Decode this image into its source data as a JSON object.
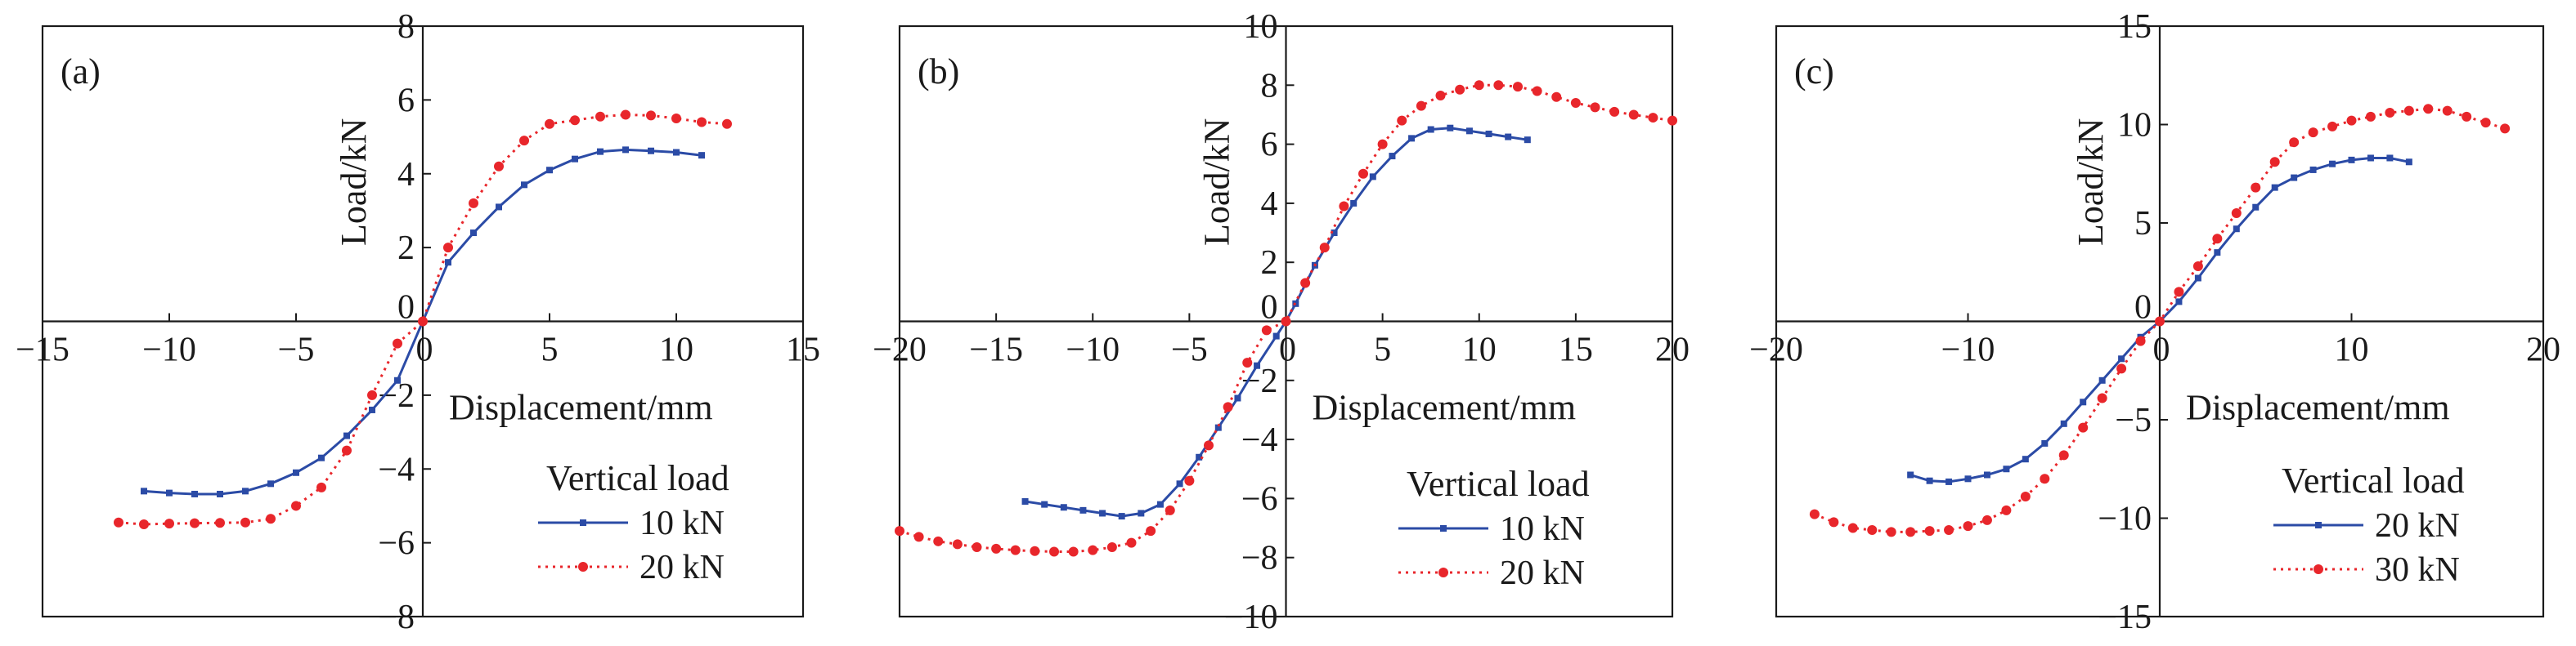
{
  "chart_data": [
    {
      "type": "line",
      "panel_label": "(a)",
      "xlabel": "Displacement/mm",
      "ylabel": "Load/kN",
      "xlim": [
        -15,
        15
      ],
      "ylim": [
        -8,
        8
      ],
      "xticks": [
        -15,
        -10,
        -5,
        0,
        5,
        10,
        15
      ],
      "yticks": [
        -8,
        -6,
        -4,
        -2,
        0,
        2,
        4,
        6,
        8
      ],
      "xtick_labels": [
        "−15",
        "−10",
        "−5",
        "0",
        "5",
        "10",
        "15"
      ],
      "ytick_labels": [
        "−8",
        "−6",
        "−4",
        "−2",
        "0",
        "2",
        "4",
        "6",
        "8"
      ],
      "grid": false,
      "legend_title": "Vertical load",
      "legend_position": "bottom-right",
      "series": [
        {
          "name": "10 kN",
          "color": "#2b4ba6",
          "style": "solid",
          "marker": "square",
          "x": [
            -11,
            -10,
            -9,
            -8,
            -7,
            -6,
            -5,
            -4,
            -3,
            -2,
            -1,
            0,
            1,
            2,
            3,
            4,
            5,
            6,
            7,
            8,
            9,
            10,
            11
          ],
          "y": [
            -4.6,
            -4.65,
            -4.68,
            -4.68,
            -4.6,
            -4.4,
            -4.1,
            -3.7,
            -3.1,
            -2.4,
            -1.6,
            0,
            1.6,
            2.4,
            3.1,
            3.7,
            4.1,
            4.4,
            4.6,
            4.65,
            4.62,
            4.58,
            4.5
          ]
        },
        {
          "name": "20 kN",
          "color": "#e8262b",
          "style": "dotted",
          "marker": "circle",
          "x": [
            -12,
            -11,
            -10,
            -9,
            -8,
            -7,
            -6,
            -5,
            -4,
            -3,
            -2,
            -1,
            0,
            1,
            2,
            3,
            4,
            5,
            6,
            7,
            8,
            9,
            10,
            11,
            12
          ],
          "y": [
            -5.45,
            -5.5,
            -5.48,
            -5.47,
            -5.46,
            -5.45,
            -5.35,
            -5.0,
            -4.5,
            -3.5,
            -2.0,
            -0.6,
            0,
            2.0,
            3.2,
            4.2,
            4.9,
            5.35,
            5.45,
            5.55,
            5.6,
            5.58,
            5.5,
            5.4,
            5.35
          ]
        }
      ]
    },
    {
      "type": "line",
      "panel_label": "(b)",
      "xlabel": "Displacement/mm",
      "ylabel": "Load/kN",
      "xlim": [
        -20,
        20
      ],
      "ylim": [
        -10,
        10
      ],
      "xticks": [
        -20,
        -15,
        -10,
        -5,
        0,
        5,
        10,
        15,
        20
      ],
      "yticks": [
        -10,
        -8,
        -6,
        -4,
        -2,
        0,
        2,
        4,
        6,
        8,
        10
      ],
      "xtick_labels": [
        "−20",
        "−15",
        "−10",
        "−5",
        "0",
        "5",
        "10",
        "15",
        "20"
      ],
      "ytick_labels": [
        "−10",
        "−8",
        "−6",
        "−4",
        "−2",
        "0",
        "2",
        "4",
        "6",
        "8",
        "10"
      ],
      "grid": false,
      "legend_title": "Vertical load",
      "legend_position": "bottom-right",
      "series": [
        {
          "name": "10 kN",
          "color": "#2b4ba6",
          "style": "solid",
          "marker": "square",
          "x": [
            -13.5,
            -12.5,
            -11.5,
            -10.5,
            -9.5,
            -8.5,
            -7.5,
            -6.5,
            -5.5,
            -4.5,
            -3.5,
            -2.5,
            -1.5,
            -0.5,
            0,
            0.5,
            1.5,
            2.5,
            3.5,
            4.5,
            5.5,
            6.5,
            7.5,
            8.5,
            9.5,
            10.5,
            11.5,
            12.5
          ],
          "y": [
            -6.1,
            -6.2,
            -6.3,
            -6.4,
            -6.5,
            -6.6,
            -6.5,
            -6.2,
            -5.5,
            -4.6,
            -3.6,
            -2.6,
            -1.5,
            -0.5,
            0,
            0.6,
            1.9,
            3.0,
            4.0,
            4.9,
            5.6,
            6.2,
            6.5,
            6.55,
            6.45,
            6.35,
            6.25,
            6.15
          ]
        },
        {
          "name": "20 kN",
          "color": "#e8262b",
          "style": "dotted",
          "marker": "circle",
          "x": [
            -20,
            -19,
            -18,
            -17,
            -16,
            -15,
            -14,
            -13,
            -12,
            -11,
            -10,
            -9,
            -8,
            -7,
            -6,
            -5,
            -4,
            -3,
            -2,
            -1,
            0,
            1,
            2,
            3,
            4,
            5,
            6,
            7,
            8,
            9,
            10,
            11,
            12,
            13,
            14,
            15,
            16,
            17,
            18,
            19,
            20
          ],
          "y": [
            -7.1,
            -7.3,
            -7.45,
            -7.55,
            -7.65,
            -7.7,
            -7.75,
            -7.78,
            -7.8,
            -7.8,
            -7.75,
            -7.65,
            -7.5,
            -7.1,
            -6.4,
            -5.4,
            -4.2,
            -2.9,
            -1.4,
            -0.3,
            0,
            1.3,
            2.5,
            3.9,
            5.0,
            6.0,
            6.8,
            7.3,
            7.65,
            7.85,
            8.0,
            8.0,
            7.95,
            7.8,
            7.6,
            7.4,
            7.25,
            7.1,
            7.0,
            6.9,
            6.8
          ]
        }
      ]
    },
    {
      "type": "line",
      "panel_label": "(c)",
      "xlabel": "Displacement/mm",
      "ylabel": "Load/kN",
      "xlim": [
        -20,
        20
      ],
      "ylim": [
        -15,
        15
      ],
      "xticks": [
        -20,
        -10,
        0,
        10,
        20
      ],
      "yticks": [
        -15,
        -10,
        -5,
        0,
        5,
        10,
        15
      ],
      "xtick_labels": [
        "−20",
        "−10",
        "0",
        "10",
        "20"
      ],
      "ytick_labels": [
        "−15",
        "−10",
        "−5",
        "0",
        "5",
        "10",
        "15"
      ],
      "grid": false,
      "legend_title": "Vertical load",
      "legend_position": "bottom-right",
      "series": [
        {
          "name": "20 kN",
          "color": "#2b4ba6",
          "style": "solid",
          "marker": "square",
          "x": [
            -13,
            -12,
            -11,
            -10,
            -9,
            -8,
            -7,
            -6,
            -5,
            -4,
            -3,
            -2,
            -1,
            0,
            1,
            2,
            3,
            4,
            5,
            6,
            7,
            8,
            9,
            10,
            11,
            12,
            13
          ],
          "y": [
            -7.8,
            -8.1,
            -8.15,
            -8.0,
            -7.8,
            -7.5,
            -7.0,
            -6.2,
            -5.2,
            -4.1,
            -3.0,
            -1.9,
            -0.8,
            0,
            1.0,
            2.2,
            3.5,
            4.7,
            5.8,
            6.8,
            7.3,
            7.7,
            8.0,
            8.2,
            8.3,
            8.3,
            8.1
          ]
        },
        {
          "name": "30 kN",
          "color": "#e8262b",
          "style": "dotted",
          "marker": "circle",
          "x": [
            -18,
            -17,
            -16,
            -15,
            -14,
            -13,
            -12,
            -11,
            -10,
            -9,
            -8,
            -7,
            -6,
            -5,
            -4,
            -3,
            -2,
            -1,
            0,
            1,
            2,
            3,
            4,
            5,
            6,
            7,
            8,
            9,
            10,
            11,
            12,
            13,
            14,
            15,
            16,
            17,
            18
          ],
          "y": [
            -9.8,
            -10.2,
            -10.5,
            -10.6,
            -10.7,
            -10.7,
            -10.65,
            -10.6,
            -10.4,
            -10.1,
            -9.6,
            -8.9,
            -8.0,
            -6.8,
            -5.4,
            -3.9,
            -2.4,
            -1.0,
            0,
            1.5,
            2.8,
            4.2,
            5.5,
            6.8,
            8.1,
            9.1,
            9.6,
            9.9,
            10.2,
            10.4,
            10.6,
            10.7,
            10.8,
            10.7,
            10.4,
            10.1,
            9.8
          ]
        }
      ]
    }
  ]
}
